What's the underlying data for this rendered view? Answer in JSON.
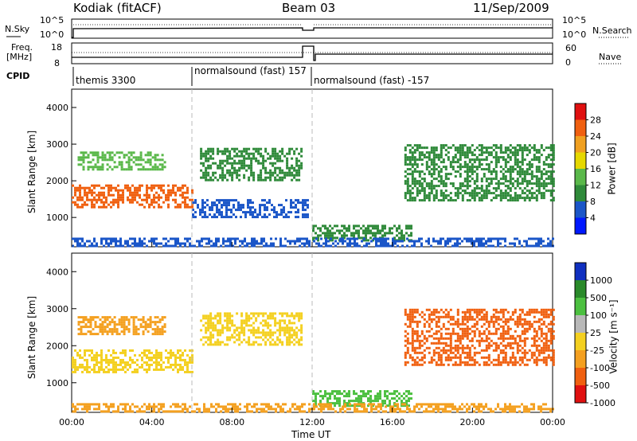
{
  "header": {
    "station": "Kodiak (fitACF)",
    "beam": "Beam 03",
    "date": "11/Sep/2009"
  },
  "top_panels": {
    "nsky_label": "N.Sky",
    "nsky_ticks": [
      "10^5",
      "10^0"
    ],
    "nsearch_label": "N.Search",
    "nsearch_ticks": [
      "10^5",
      "10^0"
    ],
    "freq_label": [
      "Freq.",
      "[MHz]"
    ],
    "freq_ticks": [
      "18",
      "8"
    ],
    "nave_label": "Nave",
    "nave_ticks": [
      "60",
      "0"
    ],
    "cpid_label": "CPID",
    "cpid_segments": [
      {
        "label": "themis 3300",
        "start_hr": 0,
        "end_hr": 6
      },
      {
        "label": "normalsound (fast) 157",
        "start_hr": 6,
        "end_hr": 12
      },
      {
        "label": "normalsound (fast) -157",
        "start_hr": 12,
        "end_hr": 24
      }
    ]
  },
  "chart_data": [
    {
      "type": "heatmap",
      "quantity": "Power",
      "xlabel": "",
      "ylabel": "Slant Range [km]",
      "xlim": [
        0,
        24
      ],
      "ylim": [
        200,
        4500
      ],
      "yticks": [
        "1000",
        "2000",
        "3000",
        "4000"
      ],
      "colorbar": {
        "label": "Power [dB]",
        "ticks": [
          "4",
          "8",
          "12",
          "16",
          "20",
          "24",
          "28"
        ],
        "colors": [
          "#0018ff",
          "#1b56c8",
          "#2f8a3a",
          "#5ab84a",
          "#e6d800",
          "#f0a020",
          "#f06010",
          "#e01010"
        ]
      },
      "regions": [
        {
          "t0": 0.0,
          "t1": 6.0,
          "r0": 1300,
          "r1": 1900,
          "value": 26
        },
        {
          "t0": 0.3,
          "t1": 4.6,
          "r0": 2300,
          "r1": 2800,
          "value": 16
        },
        {
          "t0": 6.4,
          "t1": 11.5,
          "r0": 2000,
          "r1": 2900,
          "value": 12
        },
        {
          "t0": 6.0,
          "t1": 11.8,
          "r0": 1000,
          "r1": 1500,
          "value": 8
        },
        {
          "t0": 12.0,
          "t1": 17.0,
          "r0": 400,
          "r1": 800,
          "value": 12
        },
        {
          "t0": 16.6,
          "t1": 24.0,
          "r0": 1500,
          "r1": 3000,
          "value": 10
        },
        {
          "t0": 0.0,
          "t1": 24.0,
          "r0": 200,
          "r1": 450,
          "value": 6
        }
      ]
    },
    {
      "type": "heatmap",
      "quantity": "Velocity",
      "xlabel": "Time UT",
      "ylabel": "Slant Range [km]",
      "xlim": [
        0,
        24
      ],
      "ylim": [
        200,
        4500
      ],
      "xticks": [
        "00:00",
        "04:00",
        "08:00",
        "12:00",
        "16:00",
        "20:00",
        "00:00"
      ],
      "yticks": [
        "1000",
        "2000",
        "3000",
        "4000"
      ],
      "colorbar": {
        "label": "Velocity [m s⁻¹]",
        "ticks": [
          "1000",
          "500",
          "100",
          "25",
          "-25",
          "-100",
          "-500",
          "-1000"
        ],
        "colors": [
          "#1030c0",
          "#2a8a2a",
          "#4cc040",
          "#b8b8b8",
          "#f4d020",
          "#f4a020",
          "#f06010",
          "#e01010"
        ]
      },
      "regions": [
        {
          "t0": 0.0,
          "t1": 6.0,
          "r0": 1300,
          "r1": 1900,
          "value": 0
        },
        {
          "t0": 0.3,
          "t1": 4.6,
          "r0": 2300,
          "r1": 2800,
          "value": -80
        },
        {
          "t0": 6.4,
          "t1": 11.5,
          "r0": 2000,
          "r1": 2900,
          "value": 0
        },
        {
          "t0": 12.0,
          "t1": 17.0,
          "r0": 400,
          "r1": 800,
          "value": 200
        },
        {
          "t0": 16.6,
          "t1": 24.0,
          "r0": 1500,
          "r1": 3000,
          "value": -150
        },
        {
          "t0": 0.0,
          "t1": 24.0,
          "r0": 200,
          "r1": 450,
          "value": -60
        }
      ]
    }
  ]
}
